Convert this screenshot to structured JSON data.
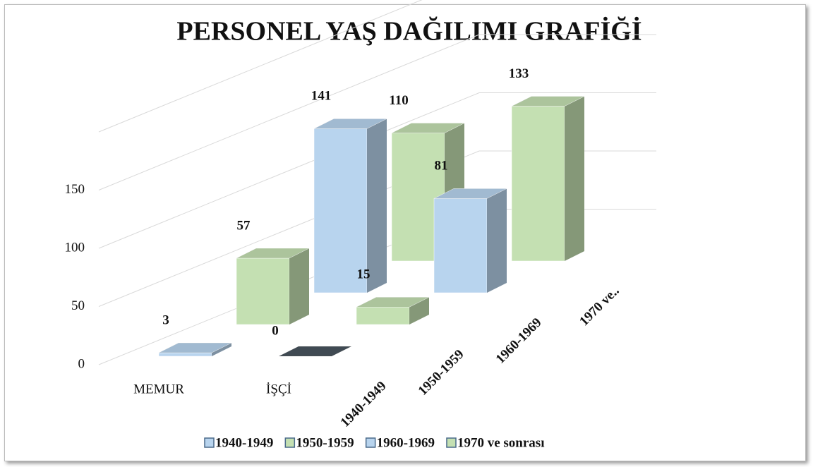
{
  "chart_data": {
    "type": "bar3d",
    "title": "PERSONEL YAŞ DAĞILIMI GRAFİĞİ",
    "categories": [
      "MEMUR",
      "İŞÇİ"
    ],
    "depth_labels": [
      "1940-1949",
      "1950-1959",
      "1960-1969",
      "1970 ve.."
    ],
    "series": [
      {
        "name": "1940-1949",
        "color": "#b8d4ee",
        "values": [
          3,
          0
        ]
      },
      {
        "name": "1950-1959",
        "color": "#c4e0b2",
        "values": [
          57,
          15
        ]
      },
      {
        "name": "1960-1969",
        "color": "#b8d4ee",
        "values": [
          141,
          81
        ]
      },
      {
        "name": "1970 ve sonrası",
        "color": "#c4e0b2",
        "values": [
          110,
          133
        ]
      }
    ],
    "ylim": [
      0,
      200
    ],
    "yticks": [
      0,
      50,
      100,
      150
    ],
    "grid": true,
    "legend": "bottom"
  }
}
